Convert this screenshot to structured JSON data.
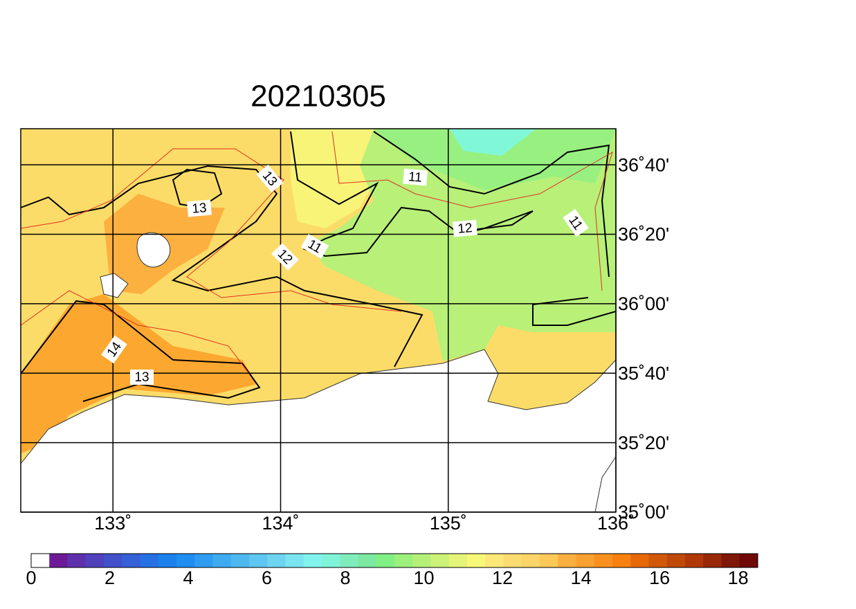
{
  "map": {
    "title": "20210305",
    "xlim": [
      132.45,
      136
    ],
    "ylim": [
      35,
      36.84
    ],
    "lon_ticks": [
      {
        "value": 133,
        "label": "133˚"
      },
      {
        "value": 134,
        "label": "134˚"
      },
      {
        "value": 135,
        "label": "135˚"
      },
      {
        "value": 136,
        "label": "136˚"
      }
    ],
    "lat_ticks": [
      {
        "value": 35,
        "label": "35˚00'"
      },
      {
        "value": 35.3333,
        "label": "35˚20'"
      },
      {
        "value": 35.6667,
        "label": "35˚40'"
      },
      {
        "value": 36,
        "label": "36˚00'"
      },
      {
        "value": 36.3333,
        "label": "36˚20'"
      },
      {
        "value": 36.6667,
        "label": "36˚40'"
      }
    ],
    "contour_labels": [
      13,
      13,
      12,
      11,
      11,
      12,
      11,
      14,
      13
    ],
    "colorbar": {
      "range": [
        0,
        18.5
      ],
      "ticks": [
        0,
        2,
        4,
        6,
        8,
        10,
        12,
        14,
        16,
        18
      ],
      "colors": [
        "#ffffff",
        "#6e1a96",
        "#5f30ac",
        "#5040bc",
        "#4250cc",
        "#3460d8",
        "#2670e4",
        "#1a80ec",
        "#1e8ef0",
        "#2e9cf0",
        "#3eaaf0",
        "#4eb8f0",
        "#5ec6f0",
        "#6ed4f0",
        "#7ae4f0",
        "#80f4ec",
        "#80f4d8",
        "#80ecbc",
        "#7ce8a0",
        "#80f084",
        "#9cf07c",
        "#b4f078",
        "#ccf278",
        "#e4f478",
        "#f8f878",
        "#fce878",
        "#fcdc70",
        "#fcd468",
        "#fcc858",
        "#f8b040",
        "#f8a030",
        "#f89020",
        "#f88010",
        "#e86808",
        "#d05808",
        "#c04808",
        "#b03808",
        "#982808",
        "#801808",
        "#700808"
      ]
    }
  }
}
